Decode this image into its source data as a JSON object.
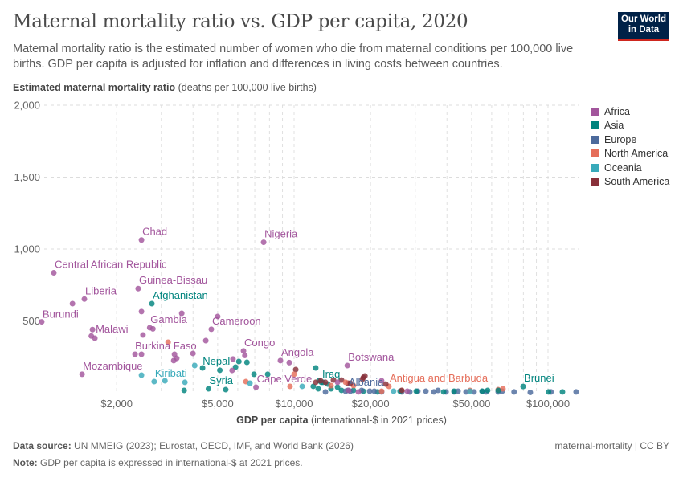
{
  "header": {
    "title": "Maternal mortality ratio vs. GDP per capita, 2020",
    "subtitle": "Maternal mortality ratio is the estimated number of women who die from maternal conditions per 100,000 live births. GDP per capita is adjusted for inflation and differences in living costs between countries.",
    "logo_line1": "Our World",
    "logo_line2": "in Data"
  },
  "footer": {
    "source_label": "Data source:",
    "source": "UN MMEIG (2023); Eurostat, OECD, IMF, and World Bank (2026)",
    "note_label": "Note:",
    "note": "GDP per capita is expressed in international-$ at 2021 prices.",
    "slug": "maternal-mortality | CC BY"
  },
  "chart_data": {
    "type": "scatter",
    "title": "Maternal mortality ratio vs. GDP per capita, 2020",
    "ylabel_bold": "Estimated maternal mortality ratio",
    "ylabel_rest": "(deaths per 100,000 live births)",
    "xlabel_bold": "GDP per capita",
    "xlabel_rest": "(international-$ in 2021 prices)",
    "x_scale": "log",
    "xlim": [
      1000,
      130000
    ],
    "ylim": [
      0,
      2000
    ],
    "grid": true,
    "legend_position": "right",
    "x_ticks": [
      {
        "v": 2000,
        "label": "$2,000"
      },
      {
        "v": 5000,
        "label": "$5,000"
      },
      {
        "v": 10000,
        "label": "$10,000"
      },
      {
        "v": 20000,
        "label": "$20,000"
      },
      {
        "v": 50000,
        "label": "$50,000"
      },
      {
        "v": 100000,
        "label": "$100,000"
      }
    ],
    "y_ticks": [
      {
        "v": 500,
        "label": "500"
      },
      {
        "v": 1000,
        "label": "1,000"
      },
      {
        "v": 1500,
        "label": "1,500"
      },
      {
        "v": 2000,
        "label": "2,000"
      }
    ],
    "series": [
      {
        "name": "Africa",
        "color": "#a2559c"
      },
      {
        "name": "Asia",
        "color": "#00847e"
      },
      {
        "name": "Europe",
        "color": "#4c6a9c"
      },
      {
        "name": "North America",
        "color": "#e56e5a"
      },
      {
        "name": "Oceania",
        "color": "#38aaba"
      },
      {
        "name": "South America",
        "color": "#883039"
      }
    ],
    "points": [
      [
        2506,
        1063,
        "Africa",
        "Chad"
      ],
      [
        7586,
        1047,
        "Africa",
        "Nigeria"
      ],
      [
        1132,
        835,
        "Africa",
        "Central African Republic"
      ],
      [
        2432,
        725,
        "Africa",
        "Guinea-Bissau"
      ],
      [
        1493,
        652,
        "Africa",
        "Liberia"
      ],
      [
        2754,
        620,
        "Asia",
        "Afghanistan"
      ],
      [
        1014,
        494,
        "Africa",
        "Burundi"
      ],
      [
        2700,
        453,
        "Africa",
        "Gambia"
      ],
      [
        1607,
        440,
        "Africa",
        "Malawi"
      ],
      [
        4720,
        442,
        "Africa",
        "Cameroon"
      ],
      [
        2364,
        268,
        "Africa",
        "Burkina Faso"
      ],
      [
        6320,
        291,
        "Africa",
        "Congo"
      ],
      [
        8835,
        224,
        "Africa",
        "Angola"
      ],
      [
        6060,
        218,
        "Asia",
        "Nepal"
      ],
      [
        1462,
        129,
        "Africa",
        "Mozambique"
      ],
      [
        2812,
        78,
        "Oceania",
        "Kiribati"
      ],
      [
        4600,
        28,
        "Asia",
        "Syria"
      ],
      [
        7080,
        39,
        "Africa",
        "Cape Verde"
      ],
      [
        12810,
        73,
        "Asia",
        "Iraq"
      ],
      [
        16290,
        17,
        "Europe",
        "Albania"
      ],
      [
        16200,
        190,
        "Africa",
        "Botswana"
      ],
      [
        23620,
        45,
        "North America",
        "Antigua and Barbuda"
      ],
      [
        79800,
        44,
        "Asia",
        "Brunei"
      ],
      [
        1340,
        620,
        "Africa"
      ],
      [
        2506,
        565,
        "Africa"
      ],
      [
        3610,
        553,
        "Africa"
      ],
      [
        5000,
        531,
        "Africa"
      ],
      [
        1590,
        395,
        "Africa"
      ],
      [
        1642,
        380,
        "Africa"
      ],
      [
        2540,
        402,
        "Africa"
      ],
      [
        2780,
        445,
        "Africa"
      ],
      [
        4490,
        363,
        "Africa"
      ],
      [
        3190,
        352,
        "North America"
      ],
      [
        2506,
        268,
        "Africa"
      ],
      [
        3997,
        274,
        "Africa"
      ],
      [
        3380,
        268,
        "Africa"
      ],
      [
        3450,
        240,
        "Africa"
      ],
      [
        3357,
        224,
        "Africa"
      ],
      [
        4060,
        190,
        "Oceania"
      ],
      [
        2506,
        123,
        "Oceania"
      ],
      [
        3716,
        73,
        "Oceania"
      ],
      [
        3100,
        84,
        "Oceania"
      ],
      [
        3690,
        17,
        "Asia"
      ],
      [
        4360,
        173,
        "Asia"
      ],
      [
        5100,
        157,
        "Asia"
      ],
      [
        5380,
        22,
        "Asia"
      ],
      [
        6520,
        212,
        "Asia"
      ],
      [
        5880,
        179,
        "Asia"
      ],
      [
        5745,
        235,
        "Africa"
      ],
      [
        5700,
        156,
        "Africa"
      ],
      [
        6400,
        260,
        "Africa"
      ],
      [
        6950,
        129,
        "Asia"
      ],
      [
        7870,
        129,
        "Asia"
      ],
      [
        6460,
        78,
        "North America"
      ],
      [
        6700,
        67,
        "Oceania"
      ],
      [
        9570,
        210,
        "Africa"
      ],
      [
        10150,
        162,
        "South America"
      ],
      [
        10000,
        129,
        "North America"
      ],
      [
        9640,
        45,
        "North America"
      ],
      [
        10760,
        45,
        "Oceania"
      ],
      [
        12170,
        173,
        "Asia"
      ],
      [
        11900,
        45,
        "Asia"
      ],
      [
        12450,
        28,
        "Asia"
      ],
      [
        12530,
        84,
        "Asia"
      ],
      [
        13000,
        73,
        "Asia"
      ],
      [
        13580,
        61,
        "Asia"
      ],
      [
        13980,
        28,
        "Asia"
      ],
      [
        14830,
        39,
        "Asia"
      ],
      [
        15370,
        17,
        "Asia"
      ],
      [
        17140,
        17,
        "Asia"
      ],
      [
        18730,
        11,
        "Asia"
      ],
      [
        21330,
        6,
        "Asia"
      ],
      [
        12170,
        73,
        "South America"
      ],
      [
        12720,
        84,
        "South America"
      ],
      [
        13290,
        73,
        "South America"
      ],
      [
        14290,
        89,
        "South America"
      ],
      [
        15370,
        89,
        "South America"
      ],
      [
        18730,
        106,
        "South America"
      ],
      [
        19010,
        117,
        "South America"
      ],
      [
        18590,
        95,
        "South America"
      ],
      [
        22960,
        61,
        "South America"
      ],
      [
        16290,
        67,
        "South America"
      ],
      [
        13290,
        6,
        "Europe"
      ],
      [
        15950,
        11,
        "Europe"
      ],
      [
        16660,
        11,
        "Europe"
      ],
      [
        19840,
        11,
        "Europe"
      ],
      [
        20700,
        11,
        "Europe"
      ],
      [
        22120,
        6,
        "Europe"
      ],
      [
        26550,
        6,
        "Europe"
      ],
      [
        28560,
        6,
        "Europe"
      ],
      [
        30700,
        11,
        "Europe"
      ],
      [
        33040,
        11,
        "Europe"
      ],
      [
        35540,
        6,
        "Europe"
      ],
      [
        36870,
        17,
        "Europe"
      ],
      [
        39680,
        6,
        "Europe"
      ],
      [
        42660,
        6,
        "Europe"
      ],
      [
        44230,
        11,
        "Europe"
      ],
      [
        47550,
        6,
        "Europe"
      ],
      [
        51150,
        6,
        "Europe"
      ],
      [
        55030,
        11,
        "Europe"
      ],
      [
        57050,
        6,
        "Europe"
      ],
      [
        63660,
        6,
        "Europe"
      ],
      [
        66000,
        11,
        "Europe"
      ],
      [
        73500,
        6,
        "Europe"
      ],
      [
        85150,
        3,
        "Europe"
      ],
      [
        102800,
        6,
        "Europe"
      ],
      [
        129000,
        6,
        "Europe"
      ],
      [
        18450,
        17,
        "Europe"
      ],
      [
        22120,
        84,
        "Africa"
      ],
      [
        16400,
        17,
        "Africa"
      ],
      [
        17910,
        6,
        "Africa"
      ],
      [
        27920,
        11,
        "Africa"
      ],
      [
        14830,
        73,
        "Africa"
      ],
      [
        13980,
        50,
        "North America"
      ],
      [
        15950,
        73,
        "North America"
      ],
      [
        17140,
        50,
        "North America"
      ],
      [
        26550,
        17,
        "North America"
      ],
      [
        49300,
        17,
        "North America"
      ],
      [
        63660,
        22,
        "North America"
      ],
      [
        66480,
        28,
        "North America"
      ],
      [
        22120,
        11,
        "North America"
      ],
      [
        26140,
        11,
        "Asia"
      ],
      [
        30280,
        11,
        "Asia"
      ],
      [
        38800,
        6,
        "Asia"
      ],
      [
        42660,
        11,
        "Asia"
      ],
      [
        55030,
        11,
        "Asia"
      ],
      [
        57850,
        17,
        "Asia"
      ],
      [
        100500,
        6,
        "Asia"
      ],
      [
        114000,
        6,
        "Asia"
      ],
      [
        63660,
        17,
        "Asia"
      ],
      [
        24660,
        11,
        "Oceania"
      ],
      [
        49300,
        11,
        "Oceania"
      ],
      [
        26550,
        17,
        "South America"
      ],
      [
        16660,
        67,
        "South America"
      ]
    ]
  }
}
